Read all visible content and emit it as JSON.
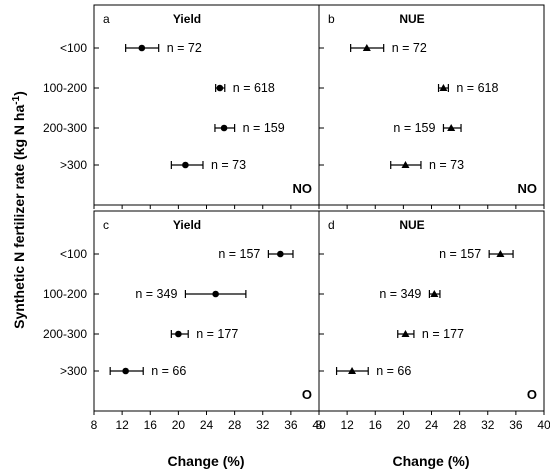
{
  "ylabel": "Synthetic N fertilizer rate (kg N ha-1)",
  "ylabel_main": "Synthetic N fertilizer rate (kg N ha",
  "ylabel_sup": "-1",
  "ylabel_end": ")",
  "xlabel_left": "Change (%)",
  "xlabel_right": "Change (%)",
  "chart_data": [
    {
      "type": "scatter",
      "panel": "a",
      "title": "Yield",
      "corner_label": "NO",
      "marker": "circle",
      "categories": [
        "<100",
        "100-200",
        "200-300",
        ">300"
      ],
      "values": [
        14.8,
        25.9,
        26.5,
        21.0
      ],
      "ci_low": [
        12.5,
        25.3,
        25.2,
        19.0
      ],
      "ci_high": [
        17.2,
        26.6,
        28.0,
        23.5
      ],
      "n_labels": [
        "n = 72",
        "n = 618",
        "n = 159",
        "n = 73"
      ],
      "n_label_side": [
        "right",
        "right",
        "right",
        "right"
      ],
      "xlim": [
        8,
        40
      ],
      "xticks": [
        "8",
        "12",
        "16",
        "20",
        "24",
        "28",
        "32",
        "36",
        "40"
      ],
      "xlabel": "",
      "ylabel": ""
    },
    {
      "type": "scatter",
      "panel": "b",
      "title": "NUE",
      "corner_label": "NO",
      "marker": "triangle",
      "categories": [
        "<100",
        "100-200",
        "200-300",
        ">300"
      ],
      "values": [
        14.8,
        25.7,
        26.8,
        20.3
      ],
      "ci_low": [
        12.5,
        25.0,
        25.7,
        18.2
      ],
      "ci_high": [
        17.2,
        26.4,
        28.2,
        22.5
      ],
      "n_labels": [
        "n = 72",
        "n = 618",
        "n = 159",
        "n = 73"
      ],
      "n_label_side": [
        "right",
        "right",
        "left",
        "right"
      ],
      "xlim": [
        8,
        40
      ],
      "xticks": [
        "8",
        "12",
        "16",
        "20",
        "24",
        "28",
        "32",
        "36",
        "40"
      ],
      "xlabel": "",
      "ylabel": ""
    },
    {
      "type": "scatter",
      "panel": "c",
      "title": "Yield",
      "corner_label": "O",
      "marker": "circle",
      "categories": [
        "<100",
        "100-200",
        "200-300",
        ">300"
      ],
      "values": [
        34.5,
        25.3,
        20.0,
        12.5
      ],
      "ci_low": [
        32.8,
        21.0,
        19.0,
        10.3
      ],
      "ci_high": [
        36.3,
        29.6,
        21.4,
        15.0
      ],
      "n_labels": [
        "n = 157",
        "n = 349",
        "n = 177",
        "n = 66"
      ],
      "n_label_side": [
        "left",
        "left",
        "right",
        "right"
      ],
      "xlim": [
        8,
        40
      ],
      "xticks": [
        "8",
        "12",
        "16",
        "20",
        "24",
        "28",
        "32",
        "36",
        "40"
      ],
      "xlabel": "",
      "ylabel": ""
    },
    {
      "type": "scatter",
      "panel": "d",
      "title": "NUE",
      "corner_label": "O",
      "marker": "triangle",
      "categories": [
        "<100",
        "100-200",
        "200-300",
        ">300"
      ],
      "values": [
        33.8,
        24.4,
        20.3,
        12.7
      ],
      "ci_low": [
        32.2,
        23.7,
        19.2,
        10.5
      ],
      "ci_high": [
        35.6,
        25.2,
        21.5,
        15.0
      ],
      "n_labels": [
        "n = 157",
        "n = 349",
        "n = 177",
        "n = 66"
      ],
      "n_label_side": [
        "left",
        "left",
        "right",
        "right"
      ],
      "xlim": [
        8,
        40
      ],
      "xticks": [
        "8",
        "12",
        "16",
        "20",
        "24",
        "28",
        "32",
        "36",
        "40"
      ],
      "xlabel": "",
      "ylabel": ""
    }
  ]
}
